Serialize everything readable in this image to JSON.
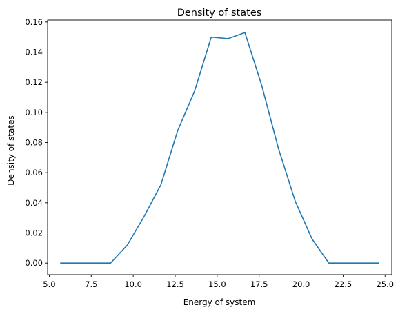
{
  "chart_data": {
    "type": "line",
    "title": "Density of states",
    "xlabel": "Energy of system",
    "ylabel": "Density of states",
    "xlim": [
      4.9,
      25.4
    ],
    "ylim": [
      -0.0077,
      0.1613
    ],
    "xticks": [
      5.0,
      7.5,
      10.0,
      12.5,
      15.0,
      17.5,
      20.0,
      22.5,
      25.0
    ],
    "xtick_labels": [
      "5.0",
      "7.5",
      "10.0",
      "12.5",
      "15.0",
      "17.5",
      "20.0",
      "22.5",
      "25.0"
    ],
    "yticks": [
      0.0,
      0.02,
      0.04,
      0.06,
      0.08,
      0.1,
      0.12,
      0.14,
      0.16
    ],
    "ytick_labels": [
      "0.00",
      "0.02",
      "0.04",
      "0.06",
      "0.08",
      "0.10",
      "0.12",
      "0.14",
      "0.16"
    ],
    "grid": false,
    "series": [
      {
        "color": "#1f77b4",
        "x": [
          5.65,
          6.65,
          7.65,
          8.65,
          9.65,
          10.65,
          11.65,
          12.65,
          13.65,
          14.65,
          15.65,
          16.65,
          17.65,
          18.65,
          19.65,
          20.65,
          21.65,
          22.65,
          23.65,
          24.65
        ],
        "y": [
          0.0,
          0.0,
          0.0,
          0.0,
          0.012,
          0.031,
          0.052,
          0.088,
          0.114,
          0.15,
          0.149,
          0.153,
          0.118,
          0.076,
          0.041,
          0.016,
          0.0,
          0.0,
          0.0,
          0.0
        ]
      }
    ]
  }
}
